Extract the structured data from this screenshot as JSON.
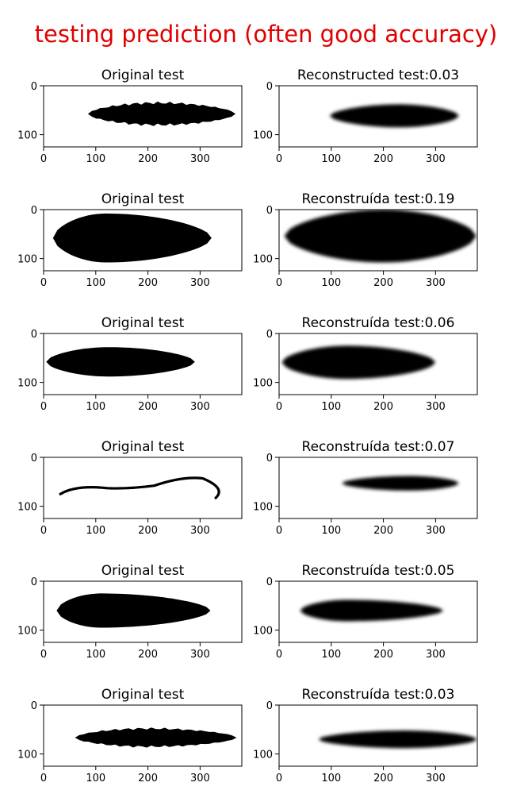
{
  "page_title": "testing prediction (often good accuracy)",
  "colors": {
    "title": "#e00000",
    "shape": "#000000",
    "axes": "#000000",
    "background": "#ffffff"
  },
  "chart_data": [
    {
      "type": "image",
      "title": "Original test",
      "xlim": [
        0,
        380
      ],
      "ylim": [
        125,
        0
      ],
      "xticks": [
        0,
        100,
        200,
        300
      ],
      "yticks": [
        0,
        100
      ],
      "shape": {
        "kind": "blob",
        "x": [
          85,
          368
        ],
        "y": [
          35,
          80
        ],
        "peak_x": 220,
        "style": "ragged"
      }
    },
    {
      "type": "image",
      "title": "Reconstructed test:0.03",
      "xlim": [
        0,
        380
      ],
      "ylim": [
        125,
        0
      ],
      "xticks": [
        0,
        100,
        200,
        300
      ],
      "yticks": [
        0,
        100
      ],
      "shape": {
        "kind": "blob",
        "x": [
          97,
          345
        ],
        "y": [
          38,
          85
        ],
        "peak_x": 230,
        "style": "blurred"
      }
    },
    {
      "type": "image",
      "title": "Original test",
      "xlim": [
        0,
        380
      ],
      "ylim": [
        125,
        0
      ],
      "xticks": [
        0,
        100,
        200,
        300
      ],
      "yticks": [
        0,
        100
      ],
      "shape": {
        "kind": "blob",
        "x": [
          18,
          322
        ],
        "y": [
          8,
          108
        ],
        "peak_x": 120,
        "style": "solid"
      }
    },
    {
      "type": "image",
      "title": "Reconstruída test:0.19",
      "xlim": [
        0,
        380
      ],
      "ylim": [
        125,
        0
      ],
      "xticks": [
        0,
        100,
        200,
        300
      ],
      "yticks": [
        0,
        100
      ],
      "shape": {
        "kind": "blob",
        "x": [
          10,
          378
        ],
        "y": [
          0,
          108
        ],
        "peak_x": 200,
        "style": "blurred"
      }
    },
    {
      "type": "image",
      "title": "Original test",
      "xlim": [
        0,
        380
      ],
      "ylim": [
        125,
        0
      ],
      "xticks": [
        0,
        100,
        200,
        300
      ],
      "yticks": [
        0,
        100
      ],
      "shape": {
        "kind": "blob",
        "x": [
          5,
          290
        ],
        "y": [
          28,
          88
        ],
        "peak_x": 125,
        "style": "solid"
      }
    },
    {
      "type": "image",
      "title": "Reconstruída test:0.06",
      "xlim": [
        0,
        380
      ],
      "ylim": [
        125,
        0
      ],
      "xticks": [
        0,
        100,
        200,
        300
      ],
      "yticks": [
        0,
        100
      ],
      "shape": {
        "kind": "blob",
        "x": [
          5,
          300
        ],
        "y": [
          25,
          93
        ],
        "peak_x": 130,
        "style": "blurred"
      }
    },
    {
      "type": "image",
      "title": "Original test",
      "xlim": [
        0,
        380
      ],
      "ylim": [
        125,
        0
      ],
      "xticks": [
        0,
        100,
        200,
        300
      ],
      "yticks": [
        0,
        100
      ],
      "shape": {
        "kind": "curve",
        "x": [
          32,
          350
        ],
        "y": [
          38,
          95
        ],
        "style": "stroke"
      }
    },
    {
      "type": "image",
      "title": "Reconstruída test:0.07",
      "xlim": [
        0,
        380
      ],
      "ylim": [
        125,
        0
      ],
      "xticks": [
        0,
        100,
        200,
        300
      ],
      "yticks": [
        0,
        100
      ],
      "shape": {
        "kind": "blob",
        "x": [
          120,
          345
        ],
        "y": [
          38,
          68
        ],
        "peak_x": 250,
        "style": "blurred"
      }
    },
    {
      "type": "image",
      "title": "Original test",
      "xlim": [
        0,
        380
      ],
      "ylim": [
        125,
        0
      ],
      "xticks": [
        0,
        100,
        200,
        300
      ],
      "yticks": [
        0,
        100
      ],
      "shape": {
        "kind": "blob",
        "x": [
          25,
          320
        ],
        "y": [
          25,
          95
        ],
        "peak_x": 110,
        "style": "solid"
      }
    },
    {
      "type": "image",
      "title": "Reconstruída test:0.05",
      "xlim": [
        0,
        380
      ],
      "ylim": [
        125,
        0
      ],
      "xticks": [
        0,
        100,
        200,
        300
      ],
      "yticks": [
        0,
        100
      ],
      "shape": {
        "kind": "blob",
        "x": [
          40,
          315
        ],
        "y": [
          38,
          82
        ],
        "peak_x": 130,
        "style": "blurred"
      }
    },
    {
      "type": "image",
      "title": "Original test",
      "xlim": [
        0,
        380
      ],
      "ylim": [
        125,
        0
      ],
      "xticks": [
        0,
        100,
        200,
        300
      ],
      "yticks": [
        0,
        100
      ],
      "shape": {
        "kind": "blob",
        "x": [
          60,
          370
        ],
        "y": [
          48,
          85
        ],
        "peak_x": 200,
        "style": "ragged"
      }
    },
    {
      "type": "image",
      "title": "Reconstruída test:0.03",
      "xlim": [
        0,
        380
      ],
      "ylim": [
        125,
        0
      ],
      "xticks": [
        0,
        100,
        200,
        300
      ],
      "yticks": [
        0,
        100
      ],
      "shape": {
        "kind": "blob",
        "x": [
          75,
          380
        ],
        "y": [
          52,
          88
        ],
        "peak_x": 240,
        "style": "blurred"
      }
    }
  ]
}
